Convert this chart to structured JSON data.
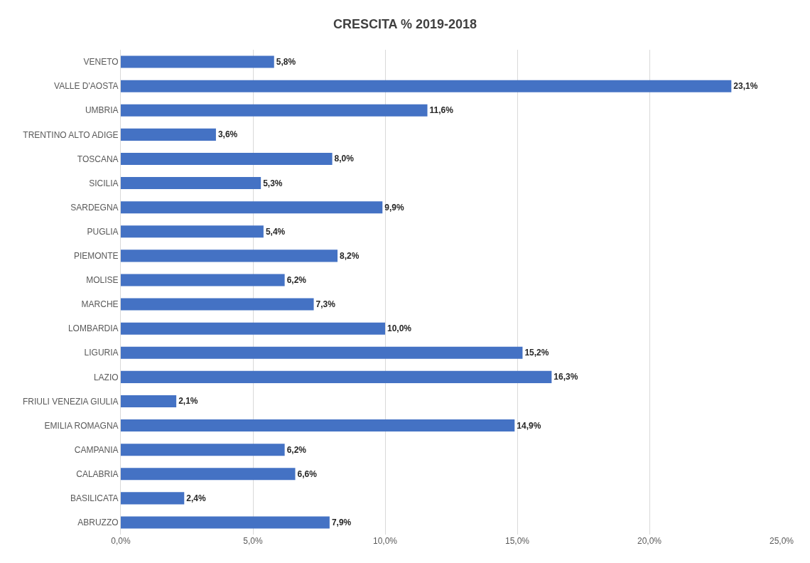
{
  "chart_data": {
    "type": "bar",
    "orientation": "horizontal",
    "title": "CRESCITA % 2019-2018",
    "categories": [
      "VENETO",
      "VALLE D'AOSTA",
      "UMBRIA",
      "TRENTINO ALTO ADIGE",
      "TOSCANA",
      "SICILIA",
      "SARDEGNA",
      "PUGLIA",
      "PIEMONTE",
      "MOLISE",
      "MARCHE",
      "LOMBARDIA",
      "LIGURIA",
      "LAZIO",
      "FRIULI VENEZIA GIULIA",
      "EMILIA ROMAGNA",
      "CAMPANIA",
      "CALABRIA",
      "BASILICATA",
      "ABRUZZO"
    ],
    "values": [
      5.8,
      23.1,
      11.6,
      3.6,
      8.0,
      5.3,
      9.9,
      5.4,
      8.2,
      6.2,
      7.3,
      10.0,
      15.2,
      16.3,
      2.1,
      14.9,
      6.2,
      6.6,
      2.4,
      7.9
    ],
    "value_labels": [
      "5,8%",
      "23,1%",
      "11,6%",
      "3,6%",
      "8,0%",
      "5,3%",
      "9,9%",
      "5,4%",
      "8,2%",
      "6,2%",
      "7,3%",
      "10,0%",
      "15,2%",
      "16,3%",
      "2,1%",
      "14,9%",
      "6,2%",
      "6,6%",
      "2,4%",
      "7,9%"
    ],
    "color": "#4472c4",
    "xlim": [
      0,
      25
    ],
    "xticks": [
      {
        "value": 0,
        "label": "0,0%"
      },
      {
        "value": 5,
        "label": "5,0%"
      },
      {
        "value": 10,
        "label": "10,0%"
      },
      {
        "value": 15,
        "label": "15,0%"
      },
      {
        "value": 20,
        "label": "20,0%"
      },
      {
        "value": 25,
        "label": "25,0%"
      }
    ],
    "grid": "x"
  }
}
